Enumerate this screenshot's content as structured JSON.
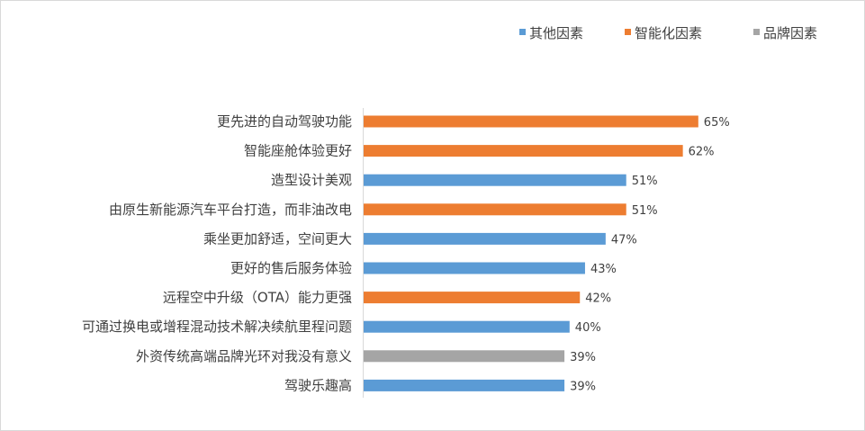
{
  "chart_data": {
    "type": "bar",
    "orientation": "horizontal",
    "title": "",
    "xlabel": "",
    "ylabel": "",
    "xlim": [
      0,
      70
    ],
    "grid": false,
    "legend_position": "top-right",
    "value_suffix": "%",
    "legend": [
      {
        "key": "other",
        "name": "其他因素",
        "color": "#5B9BD5"
      },
      {
        "key": "smart",
        "name": "智能化因素",
        "color": "#ED7D31"
      },
      {
        "key": "brand",
        "name": "品牌因素",
        "color": "#A5A5A5"
      }
    ],
    "categories": [
      "更先进的自动驾驶功能",
      "智能座舱体验更好",
      "造型设计美观",
      "由原生新能源汽车平台打造，而非油改电",
      "乘坐更加舒适，空间更大",
      "更好的售后服务体验",
      "远程空中升级（OTA）能力更强",
      "可通过换电或增程混动技术解决续航里程问题",
      "外资传统高端品牌光环对我没有意义",
      "驾驶乐趣高"
    ],
    "values": [
      65,
      62,
      51,
      51,
      47,
      43,
      42,
      40,
      39,
      39
    ],
    "value_labels": [
      "65%",
      "62%",
      "51%",
      "51%",
      "47%",
      "43%",
      "42%",
      "40%",
      "39%",
      "39%"
    ],
    "groups": [
      "smart",
      "smart",
      "other",
      "smart",
      "other",
      "other",
      "smart",
      "other",
      "brand",
      "other"
    ]
  }
}
